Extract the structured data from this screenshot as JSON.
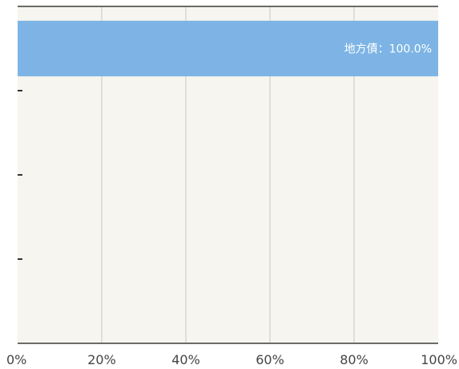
{
  "chart_data": {
    "type": "bar",
    "orientation": "horizontal",
    "stacked_percent": true,
    "title": "",
    "xlabel": "",
    "ylabel": "",
    "xlim": [
      0,
      100
    ],
    "x_ticks": [
      "0%",
      "20%",
      "40%",
      "60%",
      "80%",
      "100%"
    ],
    "grid": "vertical",
    "series": [
      {
        "color": "#7db4e5",
        "bars": [
          {
            "value": 100.0,
            "label": "地方債：100.0%"
          },
          {
            "value": 0
          },
          {
            "value": 0
          },
          {
            "value": 0
          }
        ]
      }
    ],
    "colors": {
      "plot_background": "#f6f5ef",
      "grid": "#c8c8c2",
      "axis": "#6b6b68",
      "bar": "#7db4e5"
    }
  }
}
